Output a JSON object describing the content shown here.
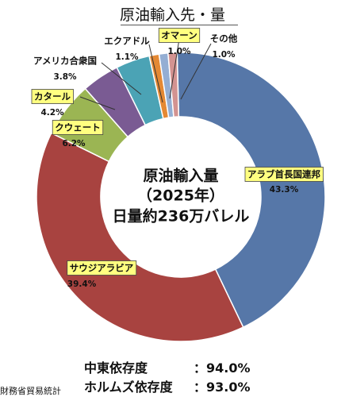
{
  "title": "原油輸入先・量",
  "chart_data": {
    "type": "pie",
    "variant": "donut",
    "slices": [
      {
        "name": "アラブ首長国連邦",
        "value": 43.3,
        "label": "43.3%",
        "color": "#5677a8",
        "highlight": true
      },
      {
        "name": "サウジアラビア",
        "value": 39.4,
        "label": "39.4%",
        "color": "#a84340",
        "highlight": true
      },
      {
        "name": "クウェート",
        "value": 6.2,
        "label": "6.2%",
        "color": "#9bb553",
        "highlight": true
      },
      {
        "name": "カタール",
        "value": 4.2,
        "label": "4.2%",
        "color": "#7a5b93",
        "highlight": true
      },
      {
        "name": "アメリカ合衆国",
        "value": 3.8,
        "label": "3.8%",
        "color": "#4ba3b5",
        "highlight": false
      },
      {
        "name": "エクアドル",
        "value": 1.1,
        "label": "1.1%",
        "color": "#e48934",
        "highlight": false
      },
      {
        "name": "オマーン",
        "value": 1.0,
        "label": "1.0%",
        "color": "#94aed3",
        "highlight": true
      },
      {
        "name": "その他",
        "value": 1.0,
        "label": "1.0%",
        "color": "#d39391",
        "highlight": false
      }
    ],
    "center_text": [
      "原油輸入量",
      "（2025年）",
      "日量約236万バレル"
    ]
  },
  "dependency": [
    {
      "label": "中東依存度",
      "value": "：94.0%"
    },
    {
      "label": "ホルムズ依存度",
      "value": "：93.0%"
    }
  ],
  "source": "財務省貿易統計",
  "colors": {
    "highlight": "#ffff80"
  }
}
